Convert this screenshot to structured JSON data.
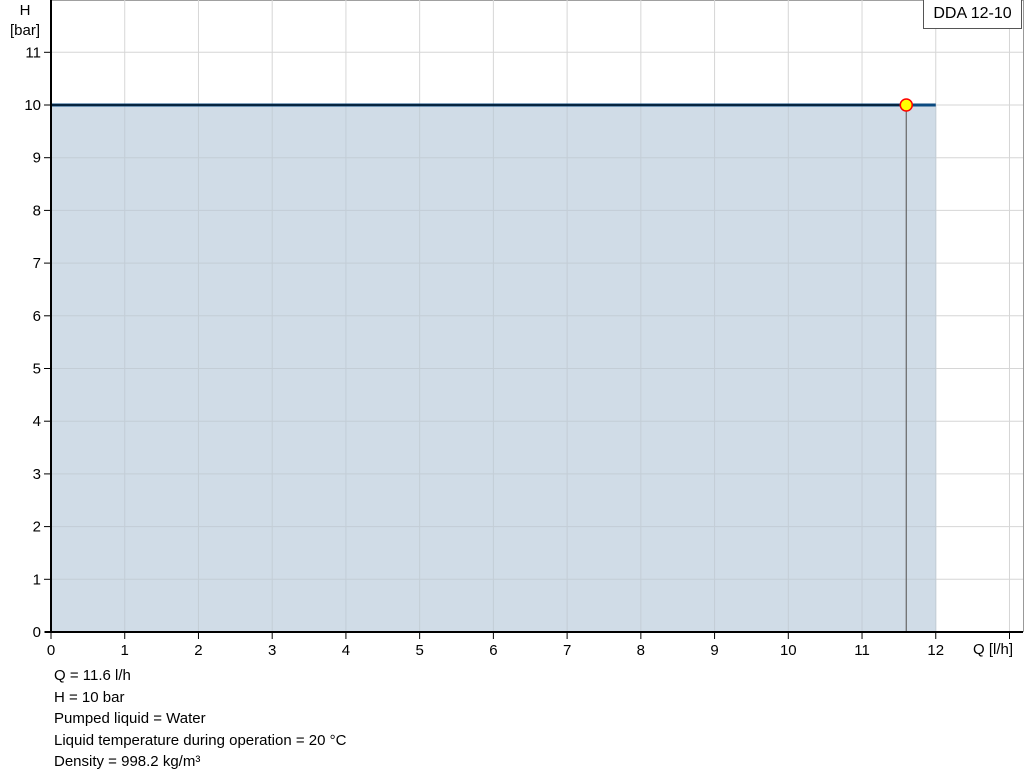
{
  "chart_data": {
    "type": "area",
    "title": "",
    "xlabel": "Q [l/h]",
    "ylabel_line1": "H",
    "ylabel_line2": "[bar]",
    "xlim": [
      0,
      13
    ],
    "ylim": [
      0,
      12
    ],
    "x_ticks": [
      "0",
      "1",
      "2",
      "3",
      "4",
      "5",
      "6",
      "7",
      "8",
      "9",
      "10",
      "11",
      "12"
    ],
    "y_ticks": [
      "0",
      "1",
      "2",
      "3",
      "4",
      "5",
      "6",
      "7",
      "8",
      "9",
      "10",
      "11"
    ],
    "grid": true,
    "legend": "top-right",
    "series": [
      {
        "name": "DDA 12-10",
        "x": [
          0,
          12
        ],
        "y": [
          10,
          10
        ],
        "fill_color": "#d0dce7",
        "line_color": "#0b4a80"
      }
    ],
    "operating_point": {
      "x": 11.6,
      "y": 10,
      "fill_color": "#ffff00",
      "stroke_color": "#ff0000"
    }
  },
  "info": [
    "Q = 11.6 l/h",
    "H = 10 bar",
    "Pumped liquid = Water",
    "Liquid temperature during operation = 20 °C",
    "Density = 998.2 kg/m³"
  ]
}
